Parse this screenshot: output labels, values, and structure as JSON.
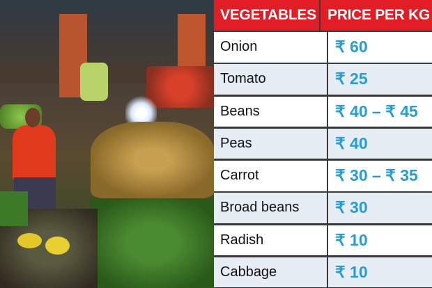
{
  "table": {
    "headers": [
      "VEGETABLES",
      "PRICE PER KG"
    ],
    "rows": [
      {
        "vegetable": "Onion",
        "price": "₹ 60"
      },
      {
        "vegetable": "Tomato",
        "price": "₹ 25"
      },
      {
        "vegetable": "Beans",
        "price": "₹ 40 – ₹ 45"
      },
      {
        "vegetable": "Peas",
        "price": "₹ 40"
      },
      {
        "vegetable": "Carrot",
        "price": "₹ 30 – ₹ 35"
      },
      {
        "vegetable": "Broad beans",
        "price": "₹ 30"
      },
      {
        "vegetable": "Radish",
        "price": "₹ 10"
      },
      {
        "vegetable": "Cabbage",
        "price": "₹ 10"
      }
    ]
  },
  "colors": {
    "header": "#e11d26",
    "price": "#2a9dd0",
    "row_alt": "#e7edf4"
  }
}
